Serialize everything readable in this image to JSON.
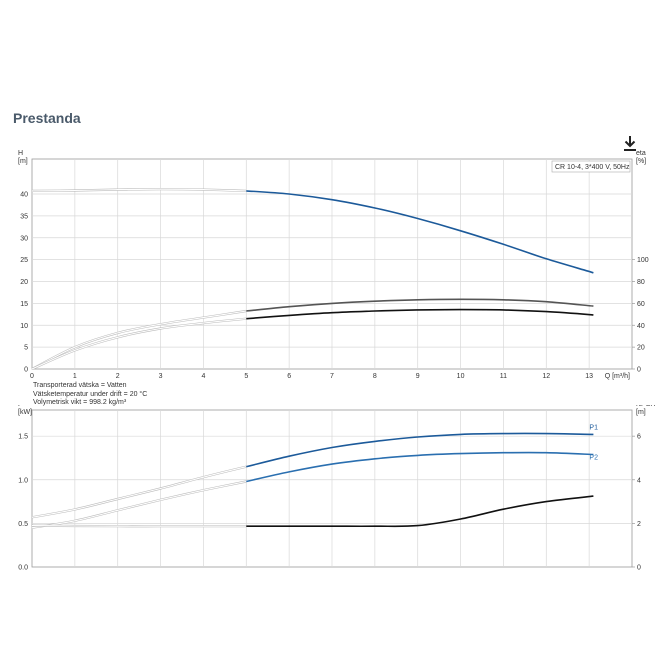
{
  "page": {
    "section_title": "Prestanda"
  },
  "toolbar": {
    "download_icon": "download-icon"
  },
  "fluid_info": {
    "line1": "Transporterad vätska = Vatten",
    "line2": "Vätsketemperatur under drift = 20 °C",
    "line3": "Volymetrisk vikt = 998.2 kg/m³"
  },
  "chart_data": [
    {
      "type": "line",
      "title": "",
      "legend_box": "CR 10-4, 3*400 V, 50Hz",
      "xlabel": "Q [m³/h]",
      "x_ticks": [
        0,
        1,
        2,
        3,
        4,
        5,
        6,
        7,
        8,
        9,
        10,
        11,
        12,
        13
      ],
      "xlim": [
        0,
        14
      ],
      "y_left_label": {
        "symbol": "H",
        "unit": "[m]"
      },
      "y_left_ticks": [
        0,
        5,
        10,
        15,
        20,
        25,
        30,
        35,
        40
      ],
      "y_left_lim": [
        0,
        48
      ],
      "y_right_label": {
        "symbol": "eta",
        "unit": "[%]"
      },
      "y_right_ticks": [
        0,
        20,
        40,
        60,
        80,
        100
      ],
      "y_right_lim": [
        0,
        192
      ],
      "grid": true,
      "series": [
        {
          "name": "",
          "axis": "left",
          "color": "#1c5a9a",
          "extrapolated_x": [
            0,
            1,
            2,
            3,
            4,
            5
          ],
          "extrapolated_y": [
            40.7,
            40.8,
            41.0,
            41.1,
            41.0,
            40.7
          ],
          "x": [
            5,
            6,
            7,
            8,
            9,
            10,
            11,
            12,
            13.1
          ],
          "y": [
            40.7,
            40.0,
            38.7,
            36.8,
            34.4,
            31.6,
            28.5,
            25.2,
            22.0
          ]
        },
        {
          "name": "",
          "axis": "right",
          "color": "#555555",
          "extrapolated_x": [
            0,
            1,
            2,
            3,
            4,
            5
          ],
          "extrapolated_y": [
            0,
            20,
            33,
            41,
            47,
            53
          ],
          "x": [
            5,
            6,
            7,
            8,
            9,
            10,
            11,
            12,
            13.1
          ],
          "y": [
            53,
            57,
            60,
            62,
            63.3,
            63.7,
            63.3,
            61.5,
            57.5
          ]
        },
        {
          "name": "",
          "axis": "right",
          "color": "#111111",
          "extrapolated_x": [
            0,
            1,
            2,
            3,
            4,
            5
          ],
          "extrapolated_y": [
            0,
            17,
            29,
            37,
            42,
            46
          ],
          "x": [
            5,
            6,
            7,
            8,
            9,
            10,
            11,
            12,
            13.1
          ],
          "y": [
            46,
            49,
            51.5,
            53,
            54,
            54.3,
            54,
            52.5,
            49.5
          ]
        }
      ]
    },
    {
      "type": "line",
      "title": "",
      "xlabel": "",
      "x_ticks": [
        0,
        1,
        2,
        3,
        4,
        5,
        6,
        7,
        8,
        9,
        10,
        11,
        12,
        13
      ],
      "xlim": [
        0,
        14
      ],
      "y_left_label": {
        "symbol": "P",
        "unit": "[kW]"
      },
      "y_left_ticks": [
        "0.0",
        "0.5",
        "1.0",
        "1.5"
      ],
      "y_left_lim": [
        0,
        1.8
      ],
      "y_right_label": {
        "symbol": "NPSH",
        "unit": "[m]"
      },
      "y_right_ticks": [
        0,
        2,
        4,
        6
      ],
      "y_right_lim": [
        0,
        7.2
      ],
      "grid": true,
      "series": [
        {
          "name": "P1",
          "axis": "left",
          "color": "#1c5a9a",
          "extrapolated_x": [
            0,
            1,
            2,
            3,
            4,
            5
          ],
          "extrapolated_y": [
            0.57,
            0.66,
            0.78,
            0.9,
            1.03,
            1.15
          ],
          "x": [
            5,
            6,
            7,
            8,
            9,
            10,
            11,
            12,
            13.1
          ],
          "y": [
            1.15,
            1.27,
            1.37,
            1.44,
            1.49,
            1.52,
            1.53,
            1.53,
            1.52
          ]
        },
        {
          "name": "P2",
          "axis": "left",
          "color": "#2a6fb0",
          "extrapolated_x": [
            0,
            1,
            2,
            3,
            4,
            5
          ],
          "extrapolated_y": [
            0.45,
            0.53,
            0.65,
            0.77,
            0.88,
            0.98
          ],
          "x": [
            5,
            6,
            7,
            8,
            9,
            10,
            11,
            12,
            13.1
          ],
          "y": [
            0.98,
            1.09,
            1.18,
            1.24,
            1.28,
            1.3,
            1.31,
            1.31,
            1.29
          ]
        },
        {
          "name": "",
          "axis": "right",
          "color": "#111111",
          "extrapolated_x": [
            0,
            1,
            2,
            3,
            4,
            5
          ],
          "extrapolated_y": [
            1.9,
            1.88,
            1.87,
            1.87,
            1.87,
            1.87
          ],
          "x": [
            5,
            6,
            7,
            8,
            9,
            10,
            11,
            12,
            13.1
          ],
          "y": [
            1.87,
            1.87,
            1.87,
            1.87,
            1.9,
            2.2,
            2.65,
            3.0,
            3.25
          ]
        }
      ]
    }
  ]
}
